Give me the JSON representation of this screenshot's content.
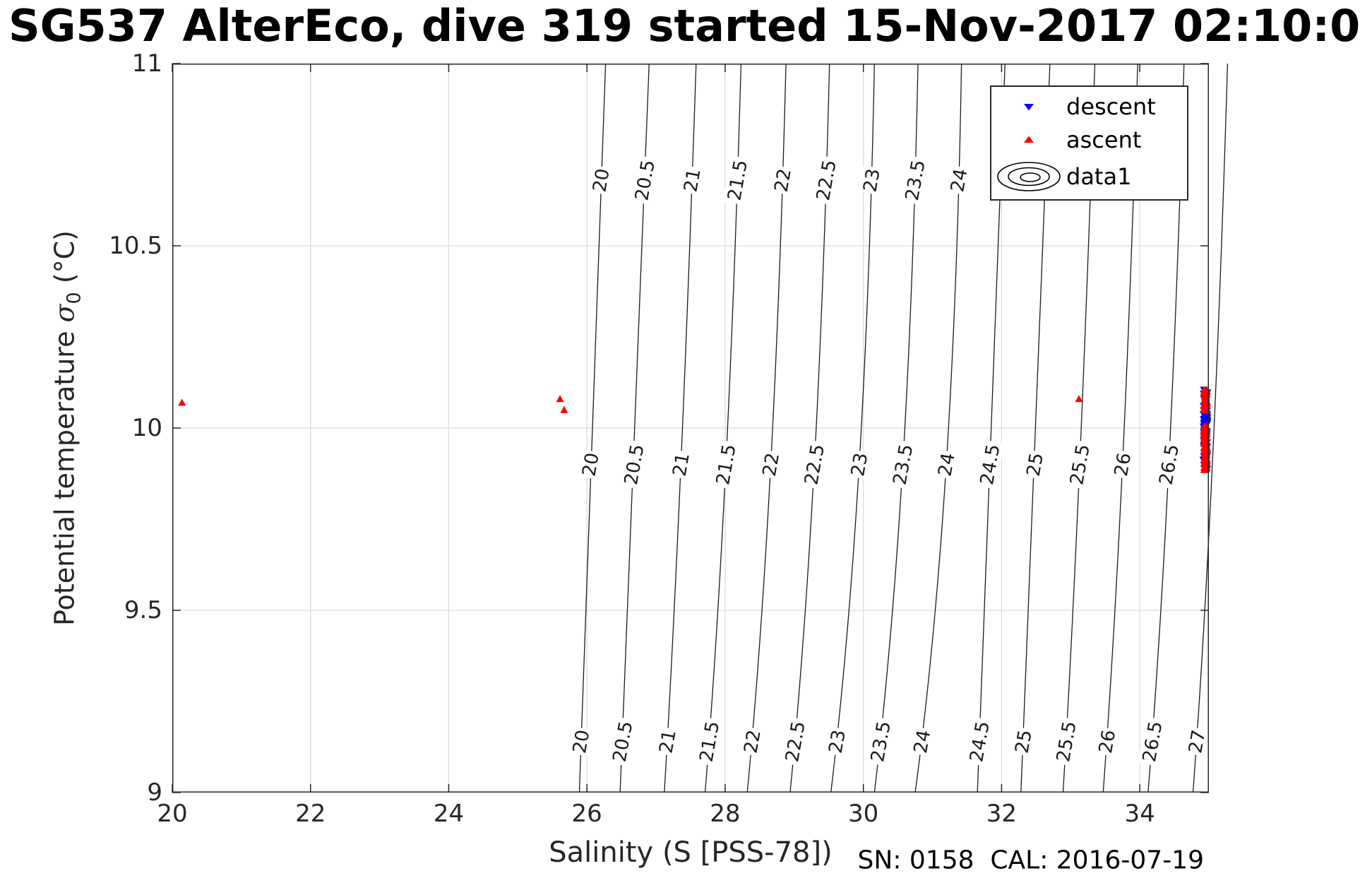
{
  "title": "SG537 AlterEco, dive 319 started 15-Nov-2017 02:10:0",
  "footer": {
    "sn_cal": "SN: 0158  CAL: 2016-07-19"
  },
  "axes": {
    "xlabel": "Salinity (S [PSS-78])",
    "ylabel": {
      "pre": "Potential temperature ",
      "sigma": "σ",
      "sub": "0",
      "post": " (°C)"
    },
    "x_ticks": [
      20,
      22,
      24,
      26,
      28,
      30,
      32,
      34
    ],
    "y_ticks": [
      9,
      9.5,
      10,
      10.5,
      11
    ],
    "xlim": [
      20,
      35
    ],
    "ylim": [
      9,
      11
    ],
    "grid": true
  },
  "legend": {
    "items": [
      {
        "label": "descent",
        "marker": "triangle-down-icon",
        "color": "#0000ff"
      },
      {
        "label": "ascent",
        "marker": "triangle-up-icon",
        "color": "#ff0000"
      },
      {
        "label": "data1",
        "marker": "contour-rings-icon",
        "color": "#000000"
      }
    ]
  },
  "colors": {
    "descent": "#0000ff",
    "ascent": "#ff0000",
    "contour_line": "#1a1a1a",
    "grid_line": "#dcdcdc",
    "axis": "#262626",
    "background": "#ffffff"
  },
  "chart_data": {
    "type": "scatter",
    "overlay": "density-contours",
    "title": "SG537 AlterEco, dive 319 started 15-Nov-2017 02:10:0",
    "xlabel": "Salinity (S [PSS-78])",
    "ylabel": "Potential temperature sigma_0 (°C)",
    "xlim": [
      20,
      35
    ],
    "ylim": [
      9,
      11
    ],
    "contours": {
      "levels": [
        {
          "value": 20,
          "s_at_t9": 25.89,
          "s_at_t9_9": 26.05,
          "s_at_t11": 26.27
        },
        {
          "value": 20.5,
          "s_at_t9": 26.48,
          "s_at_t9_9": 26.68,
          "s_at_t11": 26.9
        },
        {
          "value": 21,
          "s_at_t9": 27.12,
          "s_at_t9_9": 27.36,
          "s_at_t11": 27.58
        },
        {
          "value": 21.5,
          "s_at_t9": 27.71,
          "s_at_t9_9": 28.01,
          "s_at_t11": 28.23
        },
        {
          "value": 22,
          "s_at_t9": 28.32,
          "s_at_t9_9": 28.66,
          "s_at_t11": 28.88
        },
        {
          "value": 22.5,
          "s_at_t9": 28.94,
          "s_at_t9_9": 29.29,
          "s_at_t11": 29.51
        },
        {
          "value": 23,
          "s_at_t9": 29.53,
          "s_at_t9_9": 29.94,
          "s_at_t11": 30.16
        },
        {
          "value": 23.5,
          "s_at_t9": 30.16,
          "s_at_t9_9": 30.57,
          "s_at_t11": 30.79
        },
        {
          "value": 24,
          "s_at_t9": 30.75,
          "s_at_t9_9": 31.2,
          "s_at_t11": 31.42
        },
        {
          "value": 24.5,
          "s_at_t9": 31.65,
          "s_at_t9_9": 31.83,
          "s_at_t11": 32.05
        },
        {
          "value": 25,
          "s_at_t9": 32.28,
          "s_at_t9_9": 32.48,
          "s_at_t11": 32.7
        },
        {
          "value": 25.5,
          "s_at_t9": 32.89,
          "s_at_t9_9": 33.13,
          "s_at_t11": 33.35
        },
        {
          "value": 26,
          "s_at_t9": 33.47,
          "s_at_t9_9": 33.75,
          "s_at_t11": 33.97
        },
        {
          "value": 26.5,
          "s_at_t9": 34.12,
          "s_at_t9_9": 34.42,
          "s_at_t11": 34.64
        },
        {
          "value": 27,
          "s_at_t9": 34.77,
          "s_at_t9_9": 35.05,
          "s_at_t11": 35.27
        }
      ],
      "label_bands": [
        {
          "t": 10.68,
          "levels": [
            20,
            20.5,
            21,
            21.5,
            22,
            22.5,
            23,
            23.5,
            24
          ],
          "s_positions": [
            26.22,
            26.87,
            27.51,
            28.17,
            28.79,
            29.45,
            30.07,
            30.73,
            31.37
          ]
        },
        {
          "t": 9.9,
          "levels": [
            20,
            20.5,
            21,
            21.5,
            22,
            22.5,
            23,
            23.5,
            24,
            24.5,
            25,
            25.5,
            26,
            26.5
          ],
          "s_positions": [
            26.05,
            26.68,
            27.36,
            28.01,
            28.66,
            29.29,
            29.94,
            30.57,
            31.2,
            31.83,
            32.48,
            33.13,
            33.75,
            34.42
          ]
        },
        {
          "t": 9.14,
          "levels": [
            20,
            20.5,
            21,
            21.5,
            22,
            22.5,
            23,
            23.5,
            24,
            24.5,
            25,
            25.5,
            26,
            26.5,
            27
          ],
          "s_positions": [
            25.92,
            26.51,
            27.15,
            27.74,
            28.35,
            28.97,
            29.56,
            30.19,
            30.78,
            31.68,
            32.31,
            32.92,
            33.5,
            34.15,
            34.8
          ]
        }
      ]
    },
    "series": [
      {
        "name": "ascent",
        "marker": "triangle-up",
        "color": "#ff0000",
        "isolated_points": [
          {
            "s": 20.14,
            "t": 10.07
          },
          {
            "s": 25.61,
            "t": 10.08
          },
          {
            "s": 25.67,
            "t": 10.05
          },
          {
            "s": 33.12,
            "t": 10.08
          }
        ]
      },
      {
        "name": "descent",
        "marker": "triangle-down",
        "color": "#0000ff",
        "isolated_points": []
      }
    ],
    "cluster": {
      "comment": "dense vertical mixed cluster of descent+ascent profiles",
      "s_center": 34.95,
      "s_jitter": 0.06,
      "t_min": 9.885,
      "t_max": 10.105,
      "descent_count": 115,
      "ascent_count": 155,
      "ascent_gap_t": [
        10.005,
        10.045
      ]
    }
  }
}
